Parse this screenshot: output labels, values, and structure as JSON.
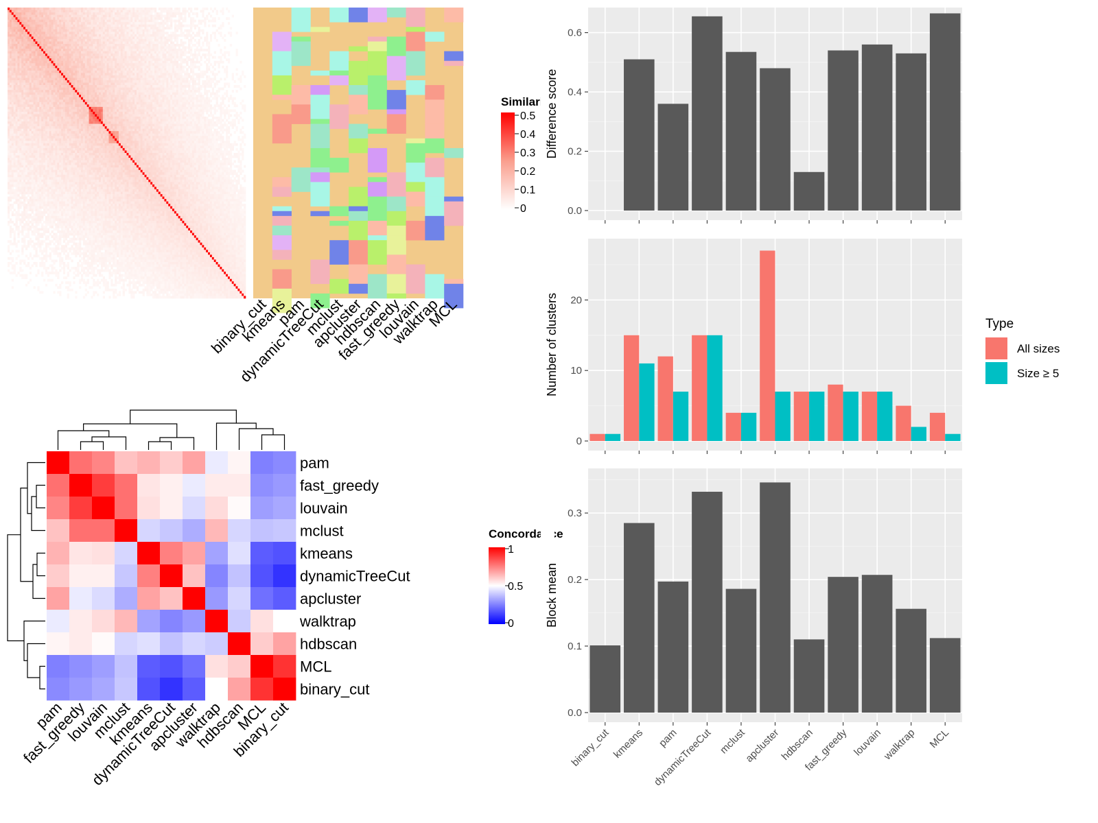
{
  "similarity_panel": {
    "legend_title": "Similarity",
    "legend_ticks": [
      "0.5",
      "0.4",
      "0.3",
      "0.2",
      "0.1",
      "0"
    ],
    "methods": [
      "binary_cut",
      "kmeans",
      "pam",
      "dynamicTreeCut",
      "mclust",
      "apcluster",
      "hdbscan",
      "fast_greedy",
      "louvain",
      "walktrap",
      "MCL"
    ],
    "diag_color": "#ff0000",
    "membership_base_color": "#f2ca8a",
    "membership_palette": [
      "#f99a8a",
      "#b9f06b",
      "#fdbba7",
      "#e3b2f6",
      "#a8f6e6",
      "#8ef08e",
      "#f4b2ba",
      "#e8f29a",
      "#d49af7",
      "#7083e8",
      "#9de6c8"
    ]
  },
  "concordance_panel": {
    "legend_title": "Concordance",
    "legend_ticks": [
      "1",
      "0.5",
      "0"
    ],
    "color_low": "#0000ff",
    "color_mid": "#ffffff",
    "color_high": "#ff0000",
    "labels": [
      "pam",
      "fast_greedy",
      "louvain",
      "mclust",
      "kmeans",
      "dynamicTreeCut",
      "apcluster",
      "walktrap",
      "hdbscan",
      "MCL",
      "binary_cut"
    ],
    "matrix": [
      [
        1.0,
        0.78,
        0.74,
        0.62,
        0.65,
        0.6,
        0.68,
        0.46,
        0.52,
        0.25,
        0.27
      ],
      [
        0.78,
        1.0,
        0.88,
        0.78,
        0.55,
        0.53,
        0.46,
        0.54,
        0.54,
        0.28,
        0.3
      ],
      [
        0.74,
        0.88,
        1.0,
        0.78,
        0.56,
        0.53,
        0.43,
        0.57,
        0.51,
        0.31,
        0.33
      ],
      [
        0.62,
        0.78,
        0.78,
        1.0,
        0.42,
        0.39,
        0.34,
        0.64,
        0.42,
        0.38,
        0.39
      ],
      [
        0.65,
        0.55,
        0.56,
        0.42,
        1.0,
        0.75,
        0.68,
        0.32,
        0.44,
        0.18,
        0.16
      ],
      [
        0.6,
        0.53,
        0.53,
        0.39,
        0.75,
        1.0,
        0.62,
        0.26,
        0.38,
        0.16,
        0.1
      ],
      [
        0.68,
        0.46,
        0.43,
        0.34,
        0.68,
        0.62,
        1.0,
        0.3,
        0.42,
        0.22,
        0.18
      ],
      [
        0.46,
        0.54,
        0.57,
        0.64,
        0.32,
        0.26,
        0.3,
        1.0,
        0.4,
        0.56,
        0.5
      ],
      [
        0.52,
        0.54,
        0.51,
        0.42,
        0.44,
        0.38,
        0.42,
        0.4,
        1.0,
        0.6,
        0.68
      ],
      [
        0.25,
        0.28,
        0.31,
        0.38,
        0.18,
        0.16,
        0.22,
        0.56,
        0.6,
        1.0,
        0.9
      ],
      [
        0.27,
        0.3,
        0.33,
        0.39,
        0.16,
        0.1,
        0.18,
        0.5,
        0.68,
        0.9,
        1.0
      ]
    ]
  },
  "chart_data": [
    {
      "type": "bar",
      "ylabel": "Difference score",
      "ylim": [
        0,
        0.68
      ],
      "yticks": [
        "0.0",
        "0.2",
        "0.4",
        "0.6"
      ],
      "categories": [
        "binary_cut",
        "kmeans",
        "pam",
        "dynamicTreeCut",
        "mclust",
        "apcluster",
        "hdbscan",
        "fast_greedy",
        "louvain",
        "walktrap",
        "MCL"
      ],
      "values": [
        0,
        0.51,
        0.36,
        0.655,
        0.535,
        0.48,
        0.13,
        0.54,
        0.56,
        0.53,
        0.665
      ],
      "bar_color": "#595959"
    },
    {
      "type": "bar",
      "ylabel": "Number of clusters",
      "ylim": [
        0,
        28.5
      ],
      "yticks": [
        "0",
        "10",
        "20"
      ],
      "categories": [
        "binary_cut",
        "kmeans",
        "pam",
        "dynamicTreeCut",
        "mclust",
        "apcluster",
        "hdbscan",
        "fast_greedy",
        "louvain",
        "walktrap",
        "MCL"
      ],
      "series": [
        {
          "name": "All sizes",
          "color": "#f8766d",
          "values": [
            1,
            15,
            12,
            15,
            4,
            27,
            7,
            8,
            7,
            5,
            4
          ]
        },
        {
          "name": "Size ≥ 5",
          "color": "#00bfc4",
          "values": [
            1,
            11,
            7,
            15,
            4,
            7,
            7,
            7,
            7,
            2,
            1
          ]
        }
      ],
      "legend_title": "Type",
      "legend_position": "right"
    },
    {
      "type": "bar",
      "ylabel": "Block mean",
      "ylim": [
        0,
        0.365
      ],
      "yticks": [
        "0.0",
        "0.1",
        "0.2",
        "0.3"
      ],
      "categories": [
        "binary_cut",
        "kmeans",
        "pam",
        "dynamicTreeCut",
        "mclust",
        "apcluster",
        "hdbscan",
        "fast_greedy",
        "louvain",
        "walktrap",
        "MCL"
      ],
      "values": [
        0.101,
        0.285,
        0.197,
        0.332,
        0.186,
        0.346,
        0.11,
        0.204,
        0.207,
        0.156,
        0.112
      ],
      "bar_color": "#595959"
    }
  ]
}
